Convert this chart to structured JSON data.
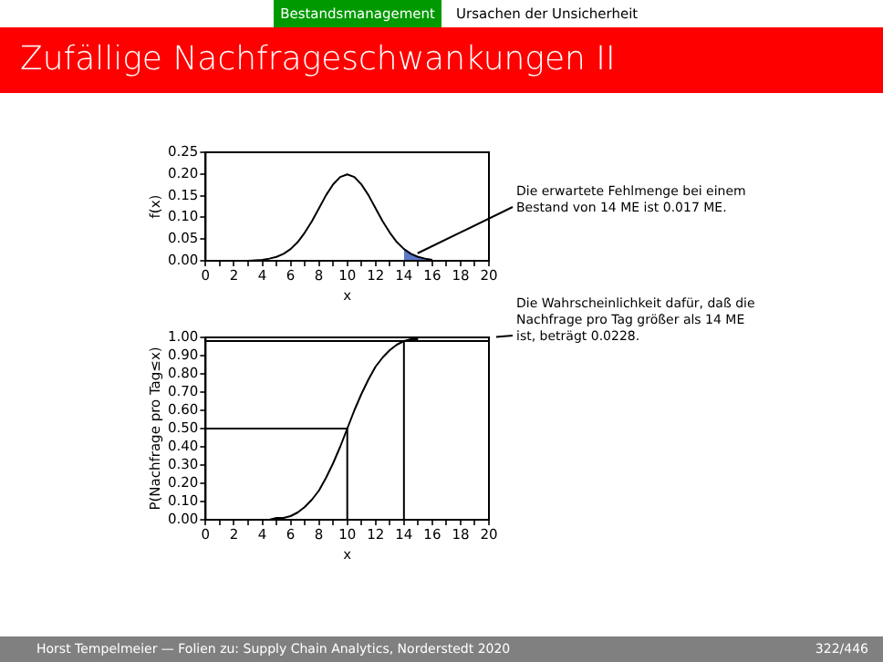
{
  "chart_data": [
    {
      "type": "other",
      "title": "Zufällige Nachfrageschwankungen II",
      "annotations": [
        "Bestandsmanagement",
        "Ursachen der Unsicherheit",
        "Horst Tempelmeier — Folien zu: Supply Chain Analytics, Norderstedt 2020",
        "322/446"
      ]
    },
    {
      "type": "line",
      "xlabel": "x",
      "ylabel": "f(x)",
      "xlim": [
        0,
        20
      ],
      "ylim": [
        0,
        0.25
      ],
      "xticks": [
        0,
        {
          "value": 1,
          "label": null
        },
        2,
        {
          "value": 3,
          "label": null
        },
        4,
        {
          "value": 5,
          "label": null
        },
        6,
        {
          "value": 7,
          "label": null
        },
        8,
        {
          "value": 9,
          "label": null
        },
        10,
        {
          "value": 11,
          "label": null
        },
        12,
        {
          "value": 13,
          "label": null
        },
        14,
        {
          "value": 15,
          "label": null
        },
        16,
        {
          "value": 17,
          "label": null
        },
        18,
        {
          "value": 19,
          "label": null
        },
        20
      ],
      "yticks": [
        {
          "value": 0,
          "label": "0.00"
        },
        {
          "value": 0.05,
          "label": "0.05"
        },
        {
          "value": 0.1,
          "label": "0.10"
        },
        {
          "value": 0.15,
          "label": "0.15"
        },
        {
          "value": 0.2,
          "label": "0.20"
        },
        {
          "value": 0.25,
          "label": "0.25"
        }
      ],
      "grid": false,
      "legend": false,
      "marker": "none",
      "series": [
        {
          "type": "line",
          "color": "#000000",
          "x": [
            0,
            1,
            2,
            3,
            4,
            4.5,
            5,
            5.5,
            6,
            6.5,
            7,
            7.5,
            8,
            8.5,
            9,
            9.5,
            10,
            10.5,
            11,
            11.5,
            12,
            12.5,
            13,
            13.5,
            14,
            14.5,
            15,
            15.5,
            16
          ],
          "values": [
            0,
            0,
            0,
            0,
            0.002,
            0.005,
            0.009,
            0.016,
            0.027,
            0.043,
            0.065,
            0.091,
            0.121,
            0.151,
            0.176,
            0.193,
            0.199,
            0.193,
            0.176,
            0.151,
            0.121,
            0.091,
            0.065,
            0.043,
            0.027,
            0.016,
            0.009,
            0.005,
            0.002
          ]
        },
        {
          "type": "area",
          "color": "#5b78c8",
          "x": [
            14,
            14.5,
            15,
            15.5,
            16
          ],
          "values": [
            0.027,
            0.016,
            0.009,
            0.005,
            0.002
          ]
        }
      ],
      "annotations": [
        {
          "text": "Die erwartete Fehlmenge bei einem Bestand von 14 ME ist 0.017 ME.",
          "x": 14.5,
          "y": 0.01
        }
      ]
    },
    {
      "type": "line",
      "xlabel": "x",
      "ylabel": "P(Nachfrage pro Tag≤x)",
      "xlim": [
        0,
        20
      ],
      "ylim": [
        0,
        1
      ],
      "xticks": [
        0,
        {
          "value": 1,
          "label": null
        },
        2,
        {
          "value": 3,
          "label": null
        },
        4,
        {
          "value": 5,
          "label": null
        },
        6,
        {
          "value": 7,
          "label": null
        },
        8,
        {
          "value": 9,
          "label": null
        },
        10,
        {
          "value": 11,
          "label": null
        },
        12,
        {
          "value": 13,
          "label": null
        },
        14,
        {
          "value": 15,
          "label": null
        },
        16,
        {
          "value": 17,
          "label": null
        },
        18,
        {
          "value": 19,
          "label": null
        },
        20
      ],
      "yticks": [
        {
          "value": 0,
          "label": "0.00"
        },
        {
          "value": 0.1,
          "label": "0.10"
        },
        {
          "value": 0.2,
          "label": "0.20"
        },
        {
          "value": 0.3,
          "label": "0.30"
        },
        {
          "value": 0.4,
          "label": "0.40"
        },
        {
          "value": 0.5,
          "label": "0.50"
        },
        {
          "value": 0.6,
          "label": "0.60"
        },
        {
          "value": 0.7,
          "label": "0.70"
        },
        {
          "value": 0.8,
          "label": "0.80"
        },
        {
          "value": 0.9,
          "label": "0.90"
        },
        {
          "value": 1,
          "label": "1.00"
        }
      ],
      "grid": false,
      "legend": false,
      "marker": "none",
      "series": [
        {
          "type": "line",
          "color": "#000000",
          "x": [
            4,
            4.5,
            5,
            5.5,
            6,
            6.5,
            7,
            7.5,
            8,
            8.5,
            9,
            9.5,
            10,
            10.5,
            11,
            11.5,
            12,
            12.5,
            13,
            13.5,
            14,
            14.5,
            15
          ],
          "values": [
            0,
            0,
            0.01,
            0.01,
            0.02,
            0.04,
            0.07,
            0.11,
            0.16,
            0.23,
            0.31,
            0.4,
            0.5,
            0.6,
            0.69,
            0.77,
            0.84,
            0.89,
            0.93,
            0.96,
            0.98,
            0.99,
            0.99
          ]
        },
        {
          "type": "line",
          "color": "#000000",
          "x": [
            0,
            10,
            10
          ],
          "values": [
            0.5,
            0.5,
            0
          ]
        },
        {
          "type": "line",
          "color": "#000000",
          "x": [
            14,
            14
          ],
          "values": [
            0,
            0.98
          ]
        },
        {
          "type": "line",
          "color": "#000000",
          "x": [
            0,
            20
          ],
          "values": [
            0.98,
            0.98
          ]
        }
      ],
      "annotations": [
        {
          "text": "Die Wahrscheinlichkeit dafür, daß die Nachfrage pro Tag größer als 14 ME ist, beträgt 0.0228.",
          "x": 20,
          "y": 1
        }
      ]
    }
  ]
}
